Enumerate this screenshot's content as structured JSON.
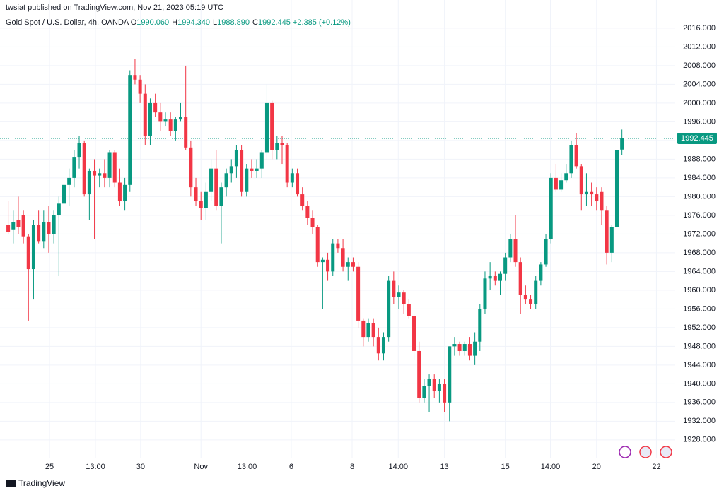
{
  "page": {
    "published": "twsiat published on TradingView.com, Nov 21, 2023 05:19 UTC",
    "symbol": "Gold Spot / U.S. Dollar, 4h, OANDA",
    "ohlc": [
      {
        "k": "O",
        "v": "1990.060"
      },
      {
        "k": "H",
        "v": "1994.340"
      },
      {
        "k": "L",
        "v": "1988.890"
      },
      {
        "k": "C",
        "v": "1992.445"
      }
    ],
    "change": "+2.385 (+0.12%)",
    "logo": "TradingView"
  },
  "chart_data": {
    "type": "candlestick",
    "up_color": "#089981",
    "down_color": "#f23645",
    "grid": true,
    "xlim": [
      -0.5,
      131.5
    ],
    "ylim": [
      1924.2,
      2017.5
    ],
    "last_price": 1992.445,
    "xticks": [
      {
        "value": 8.15,
        "label": "25"
      },
      {
        "value": 17.2,
        "label": "13:00"
      },
      {
        "value": 26.1,
        "label": "30"
      },
      {
        "value": 38,
        "label": "Nov"
      },
      {
        "value": 47.1,
        "label": "13:00"
      },
      {
        "value": 55.8,
        "label": "6"
      },
      {
        "value": 67.8,
        "label": "8"
      },
      {
        "value": 76.9,
        "label": "14:00"
      },
      {
        "value": 86,
        "label": "13"
      },
      {
        "value": 98,
        "label": "15"
      },
      {
        "value": 106.9,
        "label": "14:00"
      },
      {
        "value": 116,
        "label": "20"
      },
      {
        "value": 127.8,
        "label": "22"
      }
    ],
    "yticks": [
      {
        "value": 1928,
        "label": "1928.000"
      },
      {
        "value": 1932,
        "label": "1932.000"
      },
      {
        "value": 1936,
        "label": "1936.000"
      },
      {
        "value": 1940,
        "label": "1940.000"
      },
      {
        "value": 1944,
        "label": "1944.000"
      },
      {
        "value": 1948,
        "label": "1948.000"
      },
      {
        "value": 1952,
        "label": "1952.000"
      },
      {
        "value": 1956,
        "label": "1956.000"
      },
      {
        "value": 1960,
        "label": "1960.000"
      },
      {
        "value": 1964,
        "label": "1964.000"
      },
      {
        "value": 1968,
        "label": "1968.000"
      },
      {
        "value": 1972,
        "label": "1972.000"
      },
      {
        "value": 1976,
        "label": "1976.000"
      },
      {
        "value": 1980,
        "label": "1980.000"
      },
      {
        "value": 1984,
        "label": "1984.000"
      },
      {
        "value": 1988,
        "label": "1988.000"
      },
      {
        "value": 1992,
        "label": "1992.000"
      },
      {
        "value": 1996,
        "label": "1996.000"
      },
      {
        "value": 2000,
        "label": "2000.000"
      },
      {
        "value": 2004,
        "label": "2004.000"
      },
      {
        "value": 2008,
        "label": "2008.000"
      },
      {
        "value": 2012,
        "label": "2012.000"
      },
      {
        "value": 2016,
        "label": "2016.000"
      }
    ],
    "candles": [
      [
        1974,
        1979,
        1972,
        1972.5
      ],
      [
        1973,
        1977,
        1970,
        1974.5
      ],
      [
        1975,
        1980,
        1972,
        1973.5
      ],
      [
        1976,
        1977,
        1970,
        1971.5
      ],
      [
        1971.5,
        1972,
        1953.5,
        1964.5
      ],
      [
        1964.5,
        1975,
        1958,
        1974
      ],
      [
        1974,
        1977,
        1970,
        1970.5
      ],
      [
        1970.5,
        1977,
        1969,
        1974.5
      ],
      [
        1974.5,
        1978,
        1968,
        1972
      ],
      [
        1972,
        1977,
        1970,
        1976
      ],
      [
        1976,
        1980,
        1963,
        1978.5
      ],
      [
        1978.5,
        1984,
        1972,
        1982.5
      ],
      [
        1982.5,
        1986,
        1978,
        1984
      ],
      [
        1984,
        1990,
        1982,
        1988.5
      ],
      [
        1988.5,
        1993,
        1986,
        1991.5
      ],
      [
        1991.5,
        1992,
        1980,
        1980.5
      ],
      [
        1980.5,
        1986,
        1975,
        1985.5
      ],
      [
        1985.5,
        1988,
        1971,
        1984.5
      ],
      [
        1984.5,
        1986,
        1982,
        1985
      ],
      [
        1985,
        1988,
        1982,
        1984
      ],
      [
        1984,
        1990,
        1982,
        1989.5
      ],
      [
        1989.5,
        1990,
        1982,
        1983
      ],
      [
        1983,
        1986,
        1978,
        1979
      ],
      [
        1979,
        1984,
        1977,
        1982.5
      ],
      [
        1982.5,
        2007,
        1981,
        2006
      ],
      [
        2006,
        2009.5,
        2004,
        2005
      ],
      [
        2005,
        2006,
        2000,
        2002
      ],
      [
        2002,
        2004,
        1991,
        1993
      ],
      [
        1993,
        2001,
        1991,
        2000
      ],
      [
        2000,
        2002,
        1997,
        1998
      ],
      [
        1998,
        2000,
        1994,
        1996
      ],
      [
        1996,
        1998,
        1995,
        1996.5
      ],
      [
        1996.5,
        1998,
        1993,
        1994
      ],
      [
        1994,
        1997,
        1992,
        1996.5
      ],
      [
        1996.5,
        2000,
        1996,
        1997
      ],
      [
        1997,
        2008,
        1990,
        1990.5
      ],
      [
        1990.5,
        1992,
        1980,
        1982
      ],
      [
        1982,
        1984,
        1978,
        1979
      ],
      [
        1979,
        1981,
        1975,
        1977.5
      ],
      [
        1977.5,
        1983,
        1975,
        1981
      ],
      [
        1981,
        1988,
        1979,
        1986
      ],
      [
        1986,
        1990,
        1977,
        1978
      ],
      [
        1978,
        1983,
        1970,
        1982
      ],
      [
        1982,
        1986,
        1980,
        1985
      ],
      [
        1985,
        1988,
        1983,
        1986.5
      ],
      [
        1986.5,
        1991,
        1984,
        1990
      ],
      [
        1990,
        1991,
        1980,
        1981
      ],
      [
        1981,
        1987,
        1980,
        1986
      ],
      [
        1986,
        1988,
        1984,
        1985.5
      ],
      [
        1985.5,
        1988,
        1984,
        1986
      ],
      [
        1986,
        1990,
        1984,
        1989.5
      ],
      [
        1989.5,
        2004,
        1988,
        2000
      ],
      [
        2000,
        2000.5,
        1988,
        1990
      ],
      [
        1990,
        1993,
        1988,
        1991.5
      ],
      [
        1991.5,
        1993,
        1987,
        1991
      ],
      [
        1991,
        1991.5,
        1982,
        1983
      ],
      [
        1983,
        1986,
        1982,
        1985
      ],
      [
        1985,
        1986,
        1980,
        1980.5
      ],
      [
        1980.5,
        1982,
        1977,
        1978
      ],
      [
        1978,
        1979,
        1974,
        1975.5
      ],
      [
        1975.5,
        1977,
        1972,
        1973.5
      ],
      [
        1973.5,
        1974,
        1965,
        1966
      ],
      [
        1966,
        1967,
        1956,
        1966.5
      ],
      [
        1966.5,
        1968,
        1962,
        1964
      ],
      [
        1964,
        1971,
        1963,
        1970
      ],
      [
        1970,
        1971,
        1968,
        1969
      ],
      [
        1969,
        1971,
        1964,
        1965
      ],
      [
        1965,
        1967,
        1962,
        1966
      ],
      [
        1966,
        1967,
        1964,
        1965
      ],
      [
        1965,
        1966,
        1952,
        1953.5
      ],
      [
        1953.5,
        1954,
        1948,
        1950
      ],
      [
        1950,
        1954,
        1949,
        1953
      ],
      [
        1953,
        1954,
        1948,
        1950
      ],
      [
        1950,
        1952,
        1945,
        1946.5
      ],
      [
        1946.5,
        1951,
        1945,
        1950
      ],
      [
        1950,
        1963,
        1949,
        1962
      ],
      [
        1962,
        1964,
        1957,
        1958.5
      ],
      [
        1958.5,
        1961,
        1956,
        1959.5
      ],
      [
        1959.5,
        1960,
        1955,
        1957
      ],
      [
        1957,
        1958,
        1954,
        1954.5
      ],
      [
        1954.5,
        1955,
        1945,
        1947
      ],
      [
        1947,
        1949,
        1936,
        1937
      ],
      [
        1937,
        1941,
        1936,
        1939.5
      ],
      [
        1939.5,
        1942,
        1934,
        1941
      ],
      [
        1941,
        1942,
        1937,
        1938.5
      ],
      [
        1938.5,
        1941,
        1936,
        1940
      ],
      [
        1940,
        1941,
        1934,
        1936
      ],
      [
        1936,
        1948,
        1932,
        1948
      ],
      [
        1948,
        1950,
        1946,
        1948.5
      ],
      [
        1948.5,
        1949,
        1946,
        1947
      ],
      [
        1947,
        1949,
        1946,
        1948.5
      ],
      [
        1948.5,
        1950,
        1945,
        1946
      ],
      [
        1946,
        1951,
        1944,
        1949
      ],
      [
        1949,
        1957,
        1947,
        1956
      ],
      [
        1956,
        1964,
        1955,
        1962.5
      ],
      [
        1962.5,
        1966,
        1960,
        1963
      ],
      [
        1963,
        1964,
        1961,
        1962
      ],
      [
        1962,
        1964,
        1959,
        1963.5
      ],
      [
        1963.5,
        1968,
        1962,
        1967
      ],
      [
        1967,
        1972,
        1966,
        1971
      ],
      [
        1971,
        1976,
        1965,
        1966
      ],
      [
        1966,
        1967,
        1955,
        1959
      ],
      [
        1959,
        1961,
        1957,
        1958
      ],
      [
        1958,
        1959,
        1956,
        1957
      ],
      [
        1957,
        1963,
        1956,
        1962
      ],
      [
        1962,
        1966,
        1961,
        1965.5
      ],
      [
        1965.5,
        1972,
        1965,
        1971
      ],
      [
        1971,
        1985,
        1970,
        1984
      ],
      [
        1984,
        1987,
        1981,
        1981.5
      ],
      [
        1981.5,
        1985,
        1981,
        1983.5
      ],
      [
        1983.5,
        1987,
        1983,
        1985
      ],
      [
        1985,
        1992,
        1984,
        1991
      ],
      [
        1991,
        1993.5,
        1986,
        1986.5
      ],
      [
        1986.5,
        1987,
        1977,
        1980.5
      ],
      [
        1980.5,
        1985,
        1978,
        1981
      ],
      [
        1981,
        1983,
        1978,
        1980.5
      ],
      [
        1980.5,
        1982,
        1977,
        1979
      ],
      [
        1981,
        1982,
        1974,
        1977
      ],
      [
        1977,
        1978,
        1965.5,
        1968
      ],
      [
        1968,
        1974,
        1966,
        1973.5
      ],
      [
        1973.5,
        1991,
        1973,
        1990
      ],
      [
        1990.06,
        1994.34,
        1988.89,
        1992.445
      ]
    ]
  }
}
